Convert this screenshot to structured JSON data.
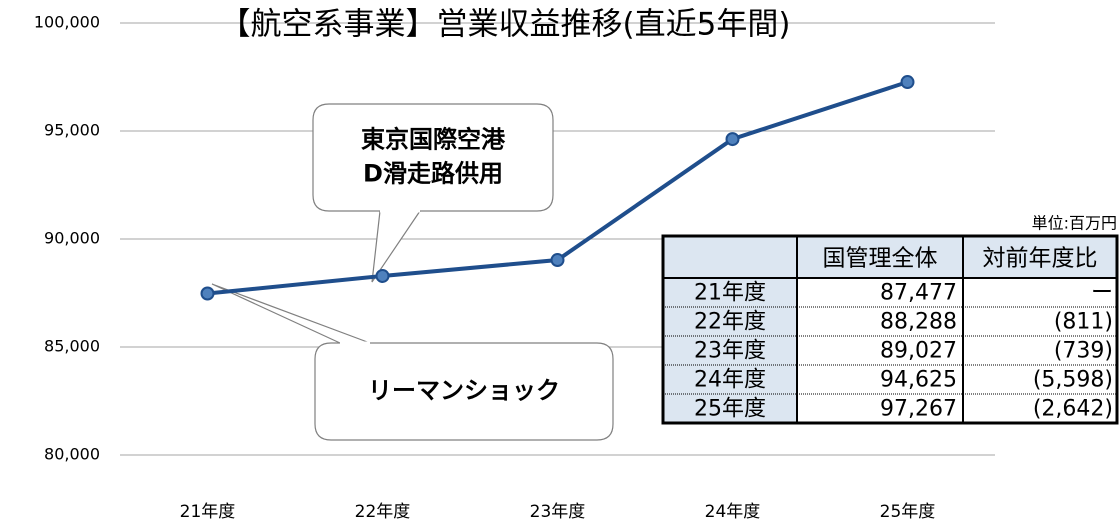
{
  "chart_data": {
    "type": "line",
    "title": "【航空系事業】営業収益推移(直近5年間)",
    "categories": [
      "21年度",
      "22年度",
      "23年度",
      "24年度",
      "25年度"
    ],
    "series": [
      {
        "color": "#1f4e8c",
        "values": [
          87477,
          88288,
          89027,
          94625,
          97267
        ]
      }
    ],
    "ylim": [
      80000,
      100000
    ],
    "yticks": [
      {
        "value": 80000,
        "label": "80,000"
      },
      {
        "value": 85000,
        "label": "85,000"
      },
      {
        "value": 90000,
        "label": "90,000"
      },
      {
        "value": 95000,
        "label": "95,000"
      },
      {
        "value": 100000,
        "label": "100,000"
      }
    ],
    "grid": true,
    "annotations": [
      {
        "lines": [
          "東京国際空港",
          "D滑走路供用"
        ]
      },
      {
        "lines": [
          "リーマンショック"
        ]
      }
    ]
  },
  "table": {
    "unit": "単位:百万円",
    "columns": [
      "国管理全体",
      "対前年度比"
    ],
    "rows": [
      [
        "21年度",
        "87,477",
        "ー"
      ],
      [
        "22年度",
        "88,288",
        "(811)"
      ],
      [
        "23年度",
        "89,027",
        "(739)"
      ],
      [
        "24年度",
        "94,625",
        "(5,598)"
      ],
      [
        "25年度",
        "97,267",
        "(2,642)"
      ]
    ]
  }
}
